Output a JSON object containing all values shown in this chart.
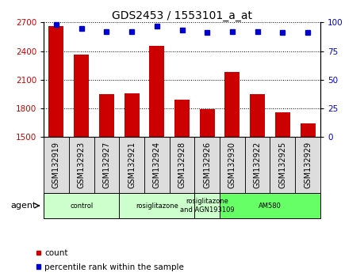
{
  "title": "GDS2453 / 1553101_a_at",
  "samples": [
    "GSM132919",
    "GSM132923",
    "GSM132927",
    "GSM132921",
    "GSM132924",
    "GSM132928",
    "GSM132926",
    "GSM132930",
    "GSM132922",
    "GSM132925",
    "GSM132929"
  ],
  "counts": [
    2660,
    2365,
    1945,
    1960,
    2450,
    1890,
    1790,
    2180,
    1950,
    1760,
    1640
  ],
  "percentiles": [
    98,
    95,
    92,
    92,
    97,
    93,
    91,
    92,
    92,
    91,
    91
  ],
  "ylim_left": [
    1500,
    2700
  ],
  "ylim_right": [
    0,
    100
  ],
  "yticks_left": [
    1500,
    1800,
    2100,
    2400,
    2700
  ],
  "yticks_right": [
    0,
    25,
    50,
    75,
    100
  ],
  "bar_color": "#cc0000",
  "dot_color": "#0000cc",
  "grid_color": "#000000",
  "agent_groups": [
    {
      "label": "control",
      "start": 0,
      "end": 3,
      "color": "#ccffcc"
    },
    {
      "label": "rosiglitazone",
      "start": 3,
      "end": 6,
      "color": "#ccffcc"
    },
    {
      "label": "rosiglitazone\nand AGN193109",
      "start": 6,
      "end": 7,
      "color": "#ccffcc"
    },
    {
      "label": "AM580",
      "start": 7,
      "end": 11,
      "color": "#66ff66"
    }
  ],
  "xlabel_agent": "agent",
  "legend_count_label": "count",
  "legend_percentile_label": "percentile rank within the sample",
  "title_fontsize": 10,
  "tick_fontsize": 7.5,
  "label_fontsize": 8,
  "sample_cell_color": "#dddddd",
  "bg_color": "#ffffff"
}
